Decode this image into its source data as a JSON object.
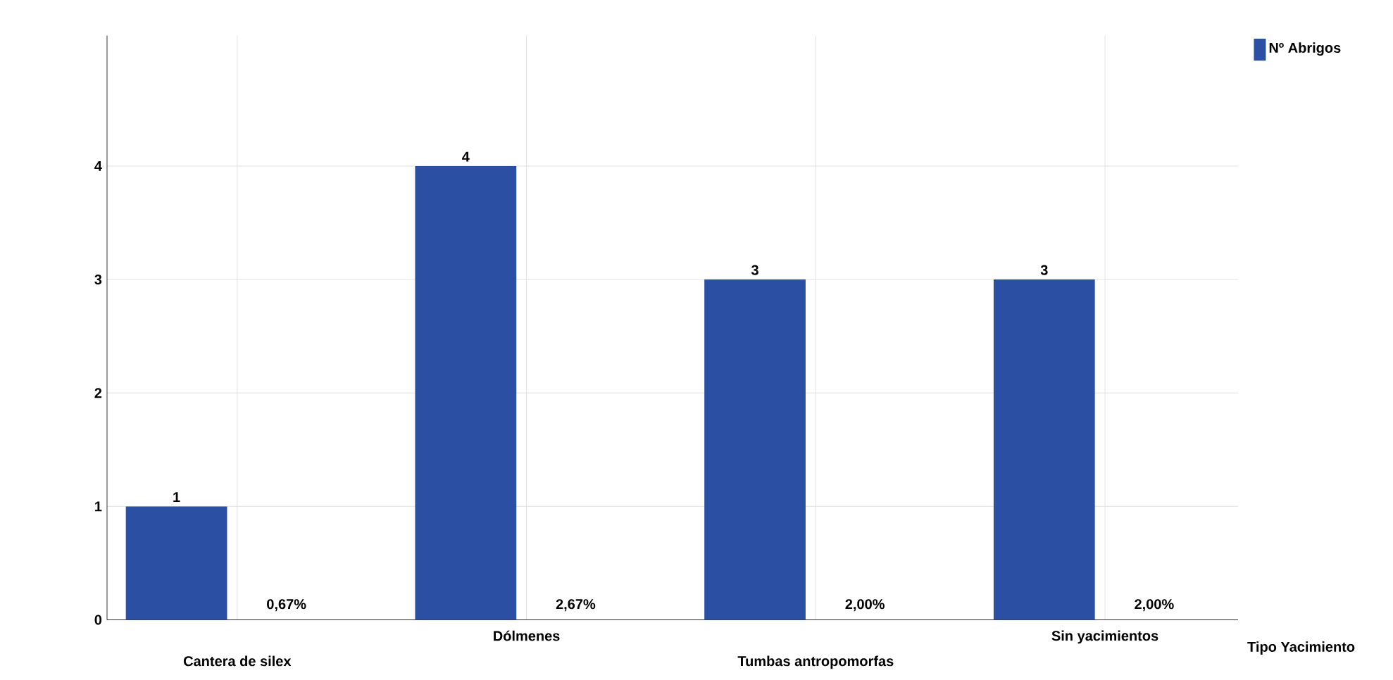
{
  "chart_data": {
    "type": "bar",
    "xlabel": "Tipo Yacimiento",
    "categories": [
      "Cantera de silex",
      "Dólmenes",
      "Tumbas antropomorfas",
      "Sin yacimientos"
    ],
    "series": [
      {
        "name": "Nº Abrigos",
        "color": "#2b50a3",
        "values": [
          1,
          4,
          3,
          3
        ]
      }
    ],
    "data_labels": true,
    "annotations": [
      "0,67%",
      "2,67%",
      "2,00%",
      "2,00%"
    ],
    "ylim": [
      0,
      5.15
    ],
    "yticks": [
      0,
      1,
      2,
      3,
      4
    ],
    "grid": true,
    "legend": "top right"
  }
}
